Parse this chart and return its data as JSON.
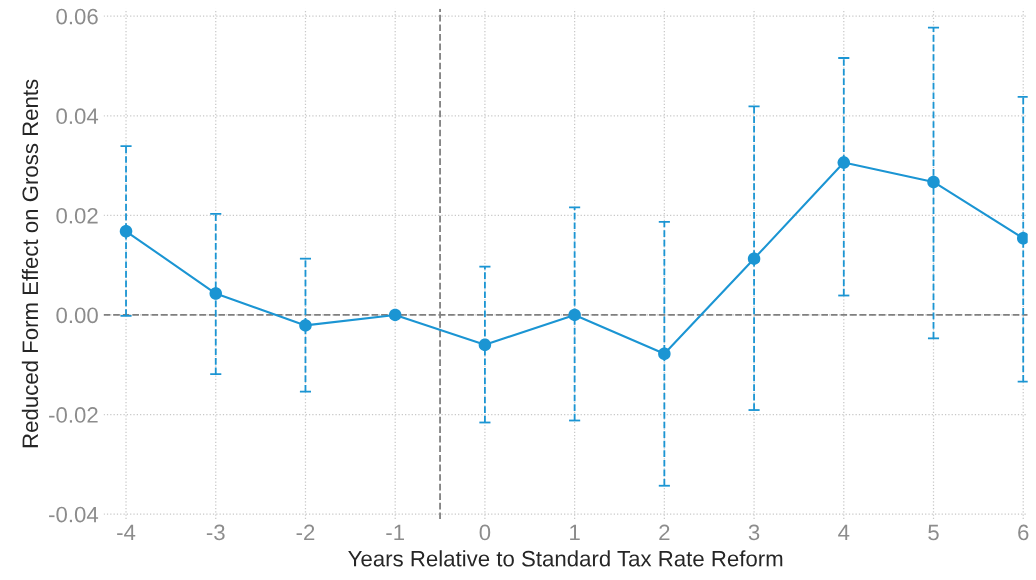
{
  "chart_data": {
    "type": "line",
    "xlabel": "Years Relative to Standard Tax Rate Reform",
    "ylabel": "Reduced Form Effect on Gross Rents",
    "x": [
      -4,
      -3,
      -2,
      -1,
      0,
      1,
      2,
      3,
      4,
      5,
      6
    ],
    "series": [
      {
        "color": "#1b95d3",
        "values": [
          0.0168,
          0.0043,
          -0.0021,
          0.0,
          -0.006,
          0.0,
          -0.0078,
          0.0113,
          0.0306,
          0.0267,
          0.0154
        ],
        "errors": [
          [
            -0.0002,
            0.0339
          ],
          [
            -0.0119,
            0.0203
          ],
          [
            -0.0154,
            0.0113
          ],
          null,
          [
            -0.0216,
            0.0097
          ],
          [
            -0.0212,
            0.0216
          ],
          [
            -0.0343,
            0.0187
          ],
          [
            -0.0191,
            0.0419
          ],
          [
            0.0039,
            0.0516
          ],
          [
            -0.0047,
            0.0577
          ],
          [
            -0.0134,
            0.0438
          ]
        ]
      }
    ],
    "xlim": [
      -4.25,
      6.05
    ],
    "ylim": [
      -0.041,
      0.0615
    ],
    "xticks": [
      -4,
      -3,
      -2,
      -1,
      0,
      1,
      2,
      3,
      4,
      5,
      6
    ],
    "yticks": [
      {
        "value": -0.04,
        "label": "-0.04"
      },
      {
        "value": -0.02,
        "label": "-0.02"
      },
      {
        "value": 0.0,
        "label": "0.00"
      },
      {
        "value": 0.02,
        "label": "0.02"
      },
      {
        "value": 0.04,
        "label": "0.04"
      },
      {
        "value": 0.06,
        "label": "0.06"
      }
    ],
    "ref_lines": [
      {
        "axis": "y",
        "value": 0,
        "color": "#808080",
        "line_style": "dashed"
      },
      {
        "axis": "x",
        "value": -0.5,
        "color": "#808080",
        "line_style": "dashed"
      }
    ],
    "grid": true,
    "marker": "circle",
    "line_style": "solid",
    "legend": false
  }
}
